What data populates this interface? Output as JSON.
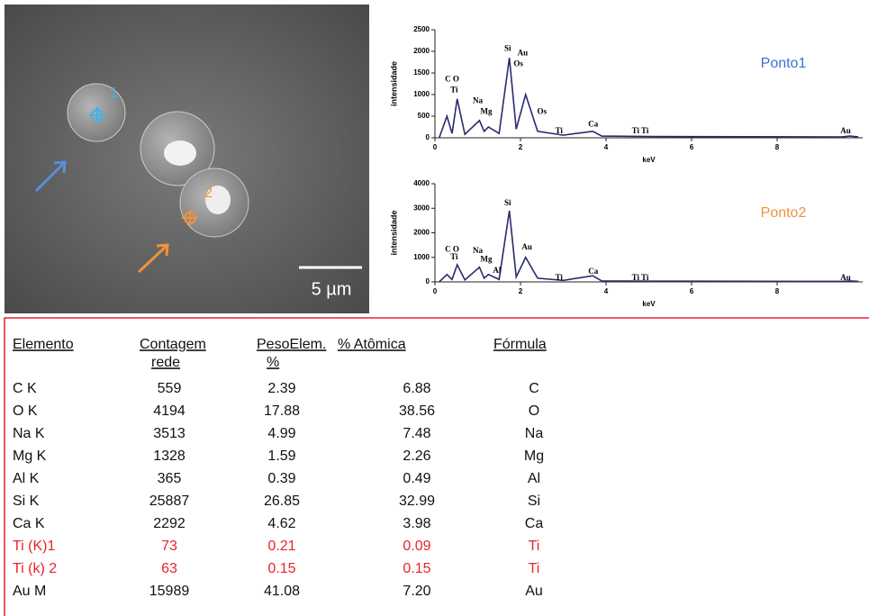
{
  "image": {
    "labels": [
      "1",
      "2"
    ],
    "scale_bar": "5 µm"
  },
  "spectra": [
    {
      "title": "Ponto1",
      "color": "#3b6fd0",
      "ylabel": "intensidade",
      "xlabel": "keV",
      "xlim": [
        0,
        10
      ],
      "xticks": [
        0,
        2,
        4,
        6,
        8
      ],
      "ylim": [
        0,
        2500
      ],
      "yticks": [
        0,
        500,
        1000,
        1500,
        2000,
        2500
      ],
      "x": [
        0.1,
        0.28,
        0.4,
        0.52,
        0.7,
        1.04,
        1.15,
        1.25,
        1.5,
        1.74,
        1.9,
        2.12,
        2.4,
        3.0,
        3.69,
        3.9,
        5,
        9.5,
        9.7,
        9.9
      ],
      "y": [
        0,
        500,
        100,
        900,
        80,
        400,
        150,
        250,
        100,
        1850,
        200,
        1000,
        150,
        60,
        150,
        40,
        30,
        20,
        40,
        20
      ],
      "peak_labels": [
        {
          "label": "C O",
          "x": 0.4,
          "y": 1350
        },
        {
          "label": "Ti",
          "x": 0.45,
          "y": 1100
        },
        {
          "label": "Na",
          "x": 1.0,
          "y": 850
        },
        {
          "label": "Mg",
          "x": 1.2,
          "y": 600
        },
        {
          "label": "Si",
          "x": 1.7,
          "y": 2050
        },
        {
          "label": "Au",
          "x": 2.05,
          "y": 1950
        },
        {
          "label": "Os",
          "x": 1.95,
          "y": 1700
        },
        {
          "label": "Os",
          "x": 2.5,
          "y": 600
        },
        {
          "label": "Ti",
          "x": 2.9,
          "y": 150
        },
        {
          "label": "Ca",
          "x": 3.7,
          "y": 300
        },
        {
          "label": "Ti Ti",
          "x": 4.8,
          "y": 150
        },
        {
          "label": "Au",
          "x": 9.6,
          "y": 150
        }
      ]
    },
    {
      "title": "Ponto2",
      "color": "#f0923a",
      "ylabel": "intensidade",
      "xlabel": "keV",
      "xlim": [
        0,
        10
      ],
      "xticks": [
        0,
        2,
        4,
        6,
        8
      ],
      "ylim": [
        0,
        4000
      ],
      "yticks": [
        0,
        1000,
        2000,
        3000,
        4000
      ],
      "x": [
        0.1,
        0.28,
        0.4,
        0.52,
        0.7,
        1.04,
        1.15,
        1.25,
        1.5,
        1.74,
        1.9,
        2.12,
        2.4,
        3.0,
        3.69,
        3.9,
        5,
        9.5,
        9.7,
        9.9
      ],
      "y": [
        0,
        300,
        100,
        700,
        80,
        600,
        150,
        300,
        100,
        2900,
        200,
        1000,
        150,
        60,
        250,
        40,
        30,
        20,
        40,
        20
      ],
      "peak_labels": [
        {
          "label": "C O",
          "x": 0.4,
          "y": 1300
        },
        {
          "label": "Ti",
          "x": 0.45,
          "y": 1000
        },
        {
          "label": "Na",
          "x": 1.0,
          "y": 1250
        },
        {
          "label": "Mg",
          "x": 1.2,
          "y": 900
        },
        {
          "label": "Al",
          "x": 1.45,
          "y": 450
        },
        {
          "label": "Si",
          "x": 1.7,
          "y": 3200
        },
        {
          "label": "Au",
          "x": 2.15,
          "y": 1400
        },
        {
          "label": "Ti",
          "x": 2.9,
          "y": 150
        },
        {
          "label": "Ca",
          "x": 3.7,
          "y": 400
        },
        {
          "label": "Ti Ti",
          "x": 4.8,
          "y": 150
        },
        {
          "label": "Au",
          "x": 9.6,
          "y": 150
        }
      ]
    }
  ],
  "table": {
    "header": [
      [
        "Elemento"
      ],
      [
        "Contagem",
        "rede"
      ],
      [
        "PesoElem.",
        "%"
      ],
      [
        "% Atômica"
      ],
      [
        "Fórmula"
      ]
    ],
    "rows": [
      [
        "C K",
        "559",
        "2.39",
        "6.88",
        "C"
      ],
      [
        "O K",
        "4194",
        "17.88",
        "38.56",
        "O"
      ],
      [
        "Na K",
        "3513",
        "4.99",
        "7.48",
        "Na"
      ],
      [
        "Mg K",
        "1328",
        "1.59",
        "2.26",
        "Mg"
      ],
      [
        "Al K",
        "365",
        "0.39",
        "0.49",
        "Al"
      ],
      [
        "Si K",
        "25887",
        "26.85",
        "32.99",
        "Si"
      ],
      [
        "Ca K",
        "2292",
        "4.62",
        "3.98",
        "Ca"
      ],
      [
        "Ti (K)1",
        "73",
        "0.21",
        "0.09",
        "Ti"
      ],
      [
        "Ti (k) 2",
        "63",
        "0.15",
        "0.15",
        "Ti"
      ],
      [
        "Au M",
        "15989",
        "41.08",
        "7.20",
        "Au"
      ]
    ],
    "highlight_rows": [
      7,
      8
    ],
    "highlight_color": "#e8232a"
  }
}
